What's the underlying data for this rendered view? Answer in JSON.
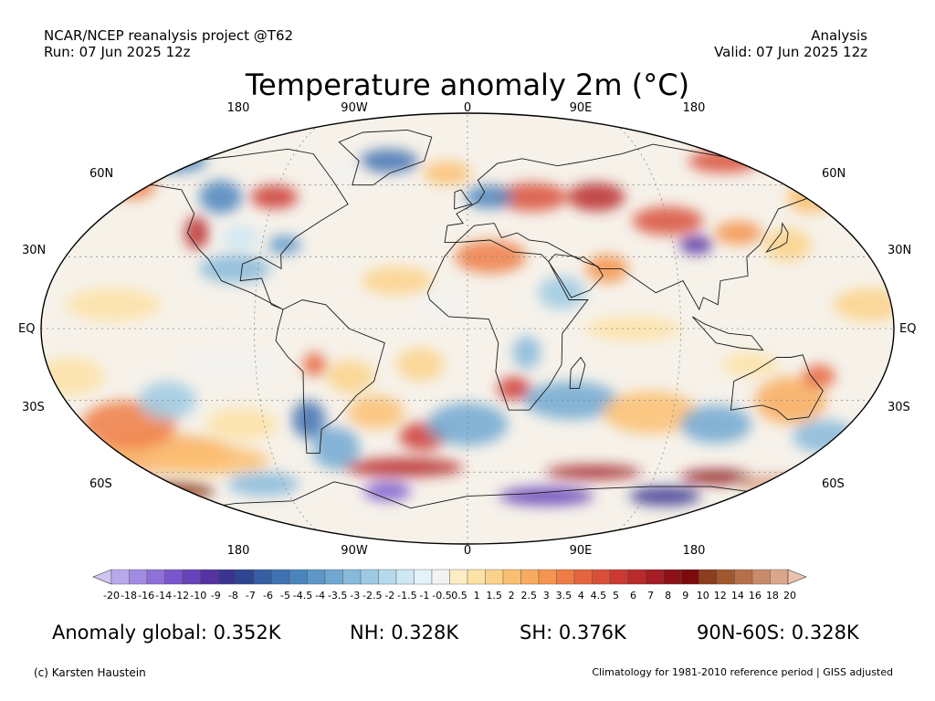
{
  "header": {
    "source": "NCAR/NCEP reanalysis project @T62",
    "run": "Run: 07 Jun 2025 12z",
    "type": "Analysis",
    "valid": "Valid: 07 Jun 2025 12z"
  },
  "title": "Temperature anomaly 2m (°C)",
  "longitude_labels": [
    "180",
    "90W",
    "0",
    "90E",
    "180"
  ],
  "latitude_labels": [
    "60N",
    "30N",
    "EQ",
    "30S",
    "60S"
  ],
  "colorbar": {
    "labels": [
      "-20",
      "-18",
      "-16",
      "-14",
      "-12",
      "-10",
      "-9",
      "-8",
      "-7",
      "-6",
      "-5",
      "-4.5",
      "-4",
      "-3.5",
      "-3",
      "-2.5",
      "-2",
      "-1.5",
      "-1",
      "-0.5",
      "0.5",
      "1",
      "1.5",
      "2",
      "2.5",
      "3",
      "3.5",
      "4",
      "4.5",
      "5",
      "6",
      "7",
      "8",
      "9",
      "10",
      "12",
      "14",
      "16",
      "18",
      "20"
    ],
    "colors": [
      "#cfc4f2",
      "#b9a8ec",
      "#a28be2",
      "#8e70d8",
      "#7a56cc",
      "#6842b8",
      "#5533a2",
      "#3b3591",
      "#2e4593",
      "#355ea3",
      "#3f72b2",
      "#4a84bd",
      "#5c97c8",
      "#70a8d1",
      "#86b9da",
      "#9ccae3",
      "#b5daec",
      "#cde8f3",
      "#e4f3f9",
      "#f2f2f2",
      "#fdedc4",
      "#fde2a6",
      "#fcd28a",
      "#fbbf72",
      "#f8ab5e",
      "#f5944e",
      "#ef7c44",
      "#e6653e",
      "#d94f38",
      "#cc3932",
      "#b92a2c",
      "#a51d25",
      "#8c1218",
      "#7c0b0b",
      "#8c3d1e",
      "#a0582f",
      "#b5704a",
      "#c98a6a",
      "#dba58a",
      "#ebc2ad"
    ]
  },
  "stats": {
    "global": "Anomaly global: 0.352K",
    "nh": "NH: 0.328K",
    "sh": "SH: 0.376K",
    "arctic": "90N-60S: 0.328K"
  },
  "footer": {
    "credit": "(c) Karsten Haustein",
    "note": "Climatology for 1981-2010 reference period | GISS adjusted"
  },
  "colors": {
    "warm": "#e6653e",
    "cold": "#4a84bd",
    "neutral": "#f2f2f2"
  }
}
